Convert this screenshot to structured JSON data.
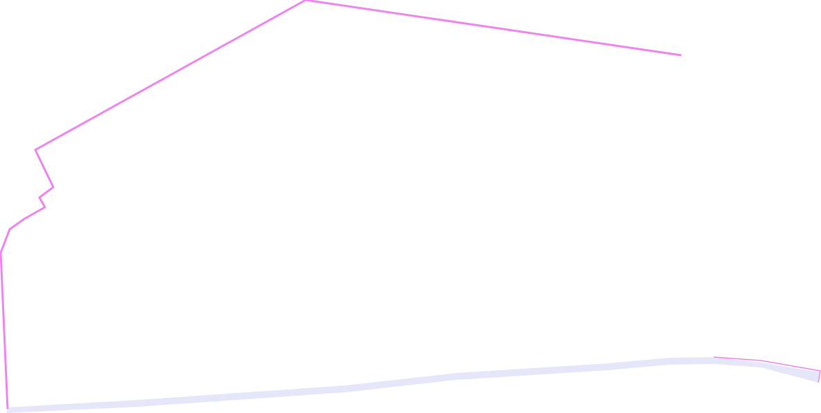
{
  "map": {
    "background_color": "#ffffff",
    "features": [
      {
        "name": "road-band",
        "kind": "road",
        "fill_color": "#e6e6fa"
      },
      {
        "name": "boundary-line",
        "kind": "boundary",
        "stroke_color": "#ee82ee"
      }
    ]
  }
}
